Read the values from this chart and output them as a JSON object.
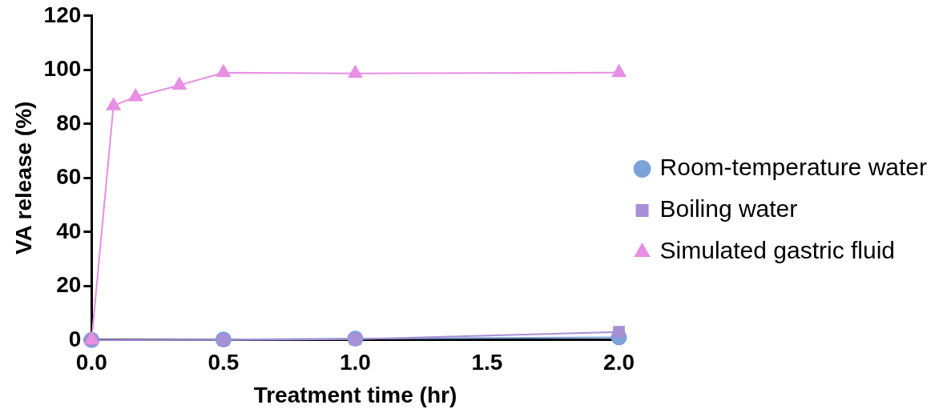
{
  "chart_data": {
    "type": "line",
    "xlabel": "Treatment time (hr)",
    "ylabel": "VA release (%)",
    "xlim": [
      0,
      2
    ],
    "xticks": [
      {
        "value": 0,
        "label": "0.0"
      },
      {
        "value": 0.5,
        "label": "0.5"
      },
      {
        "value": 1,
        "label": "1.0"
      },
      {
        "value": 1.5,
        "label": "1.5"
      },
      {
        "value": 2,
        "label": "2.0"
      }
    ],
    "ylim": [
      0,
      120
    ],
    "yticks": [
      0,
      20,
      40,
      60,
      80,
      100,
      120
    ],
    "grid": false,
    "legend": "right",
    "series": [
      {
        "name": "Room-temperature water",
        "color": "#7ba3d9",
        "marker": "circle",
        "x": [
          0,
          0.5,
          1,
          2
        ],
        "values": [
          0,
          0.2,
          0.5,
          1
        ]
      },
      {
        "name": "Boiling water",
        "color": "#a98fd6",
        "marker": "square",
        "x": [
          0,
          0.5,
          1,
          2
        ],
        "values": [
          0,
          0,
          0.3,
          3
        ]
      },
      {
        "name": "Simulated gastric fluid",
        "color": "#e68fe3",
        "marker": "triangle",
        "x": [
          0,
          0.083,
          0.167,
          0.333,
          0.5,
          1,
          2
        ],
        "values": [
          0,
          86.7,
          90,
          94.3,
          99,
          98.7,
          99
        ]
      }
    ]
  }
}
